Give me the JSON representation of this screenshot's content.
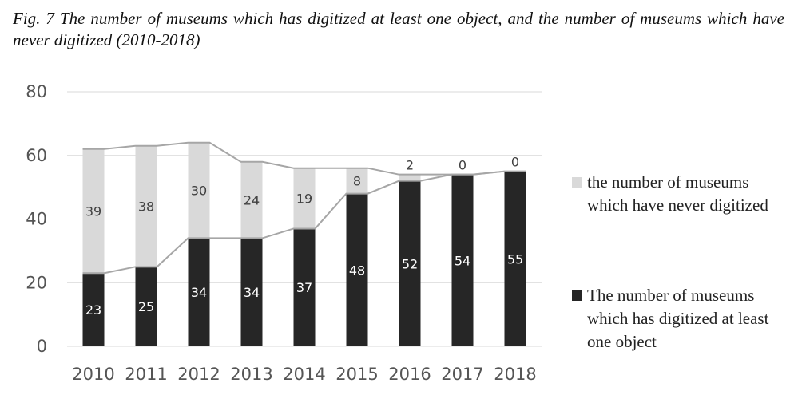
{
  "chart_data": {
    "type": "bar",
    "stacked": true,
    "title": "Fig. 7 The number of museums which has digitized at least one object, and the number of museums which have never digitized (2010-2018)",
    "categories": [
      "2010",
      "2011",
      "2012",
      "2013",
      "2014",
      "2015",
      "2016",
      "2017",
      "2018"
    ],
    "series": [
      {
        "name": "The number of museums which has digitized at least one object",
        "color": "#262626",
        "label_color": "#ffffff",
        "values": [
          23,
          25,
          34,
          34,
          37,
          48,
          52,
          54,
          55
        ]
      },
      {
        "name": "the number of museums which have never digitized",
        "color": "#d9d9d9",
        "label_color": "#404040",
        "values": [
          39,
          38,
          30,
          24,
          19,
          8,
          2,
          0,
          0
        ]
      }
    ],
    "series_lines": true,
    "series_line_color": "#a6a6a6",
    "ylim": [
      0,
      80
    ],
    "yticks": [
      0,
      20,
      40,
      60,
      80
    ],
    "gridlines": true,
    "xlabel": "",
    "ylabel": "",
    "legend_position": "right"
  }
}
